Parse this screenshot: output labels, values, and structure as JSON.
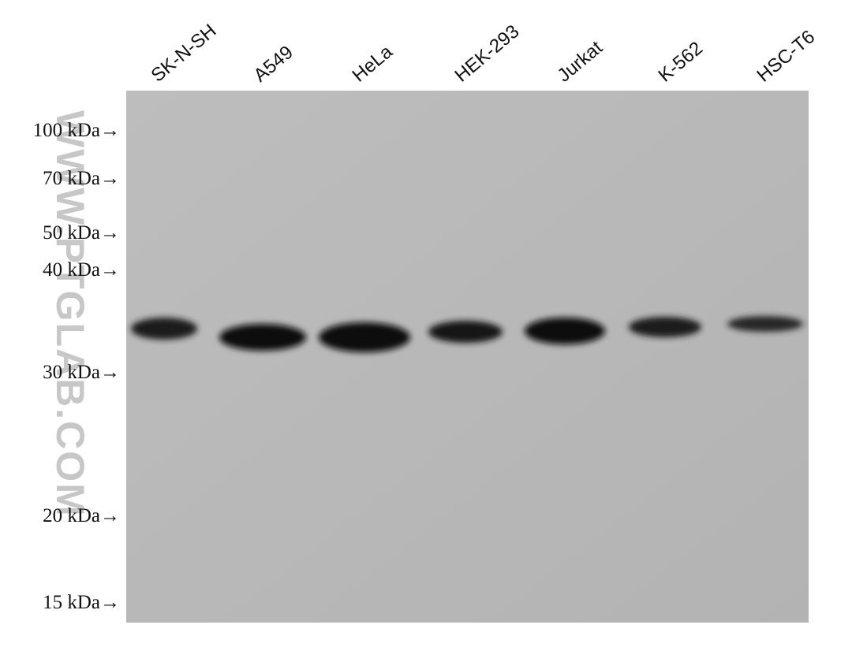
{
  "lanes": [
    "SK-N-SH",
    "A549",
    "HeLa",
    "HEK-293",
    "Jurkat",
    "K-562",
    "HSC-T6"
  ],
  "markers": [
    "100 kDa→",
    "70 kDa→",
    "50 kDa→",
    "40 kDa→",
    "30 kDa→",
    "20 kDa→",
    "15 kDa→"
  ],
  "watermark": "WWW.PTGLAB.COM"
}
